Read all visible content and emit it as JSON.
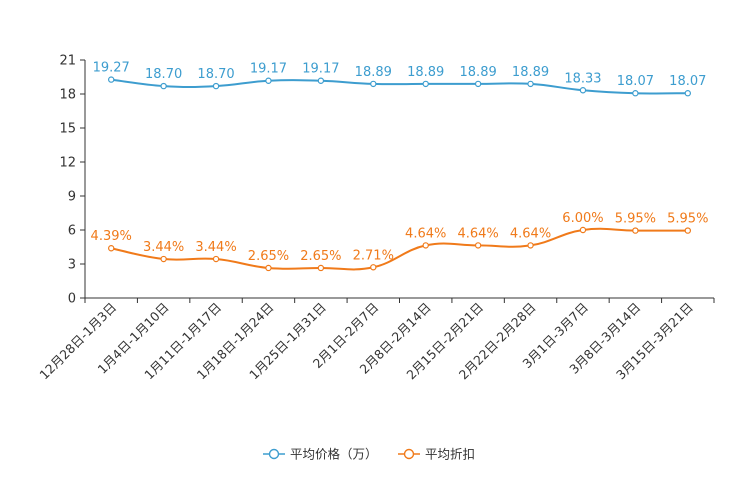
{
  "chart_data": {
    "type": "line",
    "categories": [
      "12月28日-1月3日",
      "1月4日-1月10日",
      "1月11日-1月17日",
      "1月18日-1月24日",
      "1月25日-1月31日",
      "2月1日-2月7日",
      "2月8日-2月14日",
      "2月15日-2月21日",
      "2月22日-2月28日",
      "3月1日-3月7日",
      "3月8日-3月14日",
      "3月15日-3月21日"
    ],
    "series": [
      {
        "name": "平均价格（万）",
        "color": "#3d9dcf",
        "values": [
          19.27,
          18.7,
          18.7,
          19.17,
          19.17,
          18.89,
          18.89,
          18.89,
          18.89,
          18.33,
          18.07,
          18.07
        ],
        "labels": [
          "19.27",
          "18.70",
          "18.70",
          "19.17",
          "19.17",
          "18.89",
          "18.89",
          "18.89",
          "18.89",
          "18.33",
          "18.07",
          "18.07"
        ]
      },
      {
        "name": "平均折扣",
        "color": "#f07a1a",
        "values": [
          4.39,
          3.44,
          3.44,
          2.65,
          2.65,
          2.71,
          4.64,
          4.64,
          4.64,
          6.0,
          5.95,
          5.95
        ],
        "labels": [
          "4.39%",
          "3.44%",
          "3.44%",
          "2.65%",
          "2.65%",
          "2.71%",
          "4.64%",
          "4.64%",
          "4.64%",
          "6.00%",
          "5.95%",
          "5.95%"
        ]
      }
    ],
    "yticks": [
      "0",
      "3",
      "6",
      "9",
      "12",
      "15",
      "18",
      "21"
    ],
    "ylim": [
      0,
      21
    ],
    "grid": false,
    "legend_position": "bottom-center"
  }
}
